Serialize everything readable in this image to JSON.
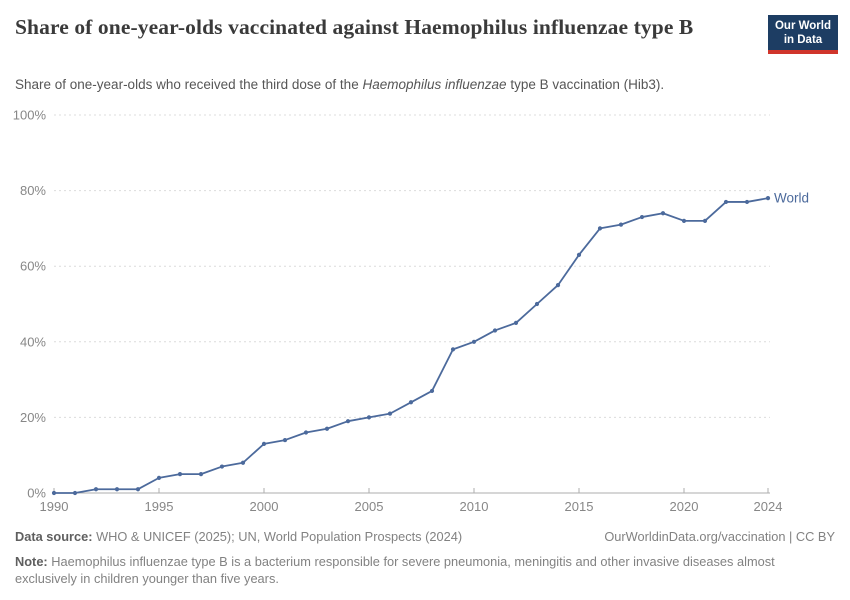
{
  "header": {
    "title": "Share of one-year-olds vaccinated against Haemophilus influenzae type B",
    "subtitle_prefix": "Share of one-year-olds who received the third dose of the ",
    "subtitle_italic": "Haemophilus influenzae",
    "subtitle_suffix": " type B vaccination (Hib3).",
    "logo_line1": "Our World",
    "logo_line2": "in Data"
  },
  "colors": {
    "line": "#4c6a9c",
    "series_label": "#4c6a9c",
    "gridline": "#dcdcdc",
    "axis": "#adadad",
    "tick_label": "#878787",
    "logo_bg": "#1d3d63",
    "logo_stripe": "#d0352b"
  },
  "chart_data": {
    "type": "line",
    "title": "Share of one-year-olds vaccinated against Haemophilus influenzae type B",
    "series_label": "World",
    "x": [
      1990,
      1991,
      1992,
      1993,
      1994,
      1995,
      1996,
      1997,
      1998,
      1999,
      2000,
      2001,
      2002,
      2003,
      2004,
      2005,
      2006,
      2007,
      2008,
      2009,
      2010,
      2011,
      2012,
      2013,
      2014,
      2015,
      2016,
      2017,
      2018,
      2019,
      2020,
      2021,
      2022,
      2023,
      2024
    ],
    "values": [
      0,
      0,
      1,
      1,
      1,
      4,
      5,
      5,
      7,
      8,
      13,
      14,
      16,
      17,
      19,
      20,
      21,
      24,
      27,
      38,
      40,
      43,
      45,
      50,
      55,
      63,
      70,
      71,
      73,
      74,
      72,
      72,
      77,
      77,
      78
    ],
    "xlabel": "",
    "ylabel": "",
    "xlim": [
      1990,
      2024
    ],
    "ylim": [
      0,
      100
    ],
    "xticks": [
      1990,
      1995,
      2000,
      2005,
      2010,
      2015,
      2020,
      2024
    ],
    "yticks": [
      0,
      20,
      40,
      60,
      80,
      100
    ],
    "ytick_suffix": "%",
    "grid": "horizontal-dashed",
    "legend_position": "end-of-line"
  },
  "footer": {
    "datasource_label": "Data source:",
    "datasource_text": " WHO & UNICEF (2025); UN, World Population Prospects (2024)",
    "link": "OurWorldinData.org/vaccination | CC BY",
    "note_label": "Note:",
    "note_text": " Haemophilus influenzae type B is a bacterium responsible for severe pneumonia, meningitis and other invasive diseases almost exclusively in children younger than five years."
  }
}
